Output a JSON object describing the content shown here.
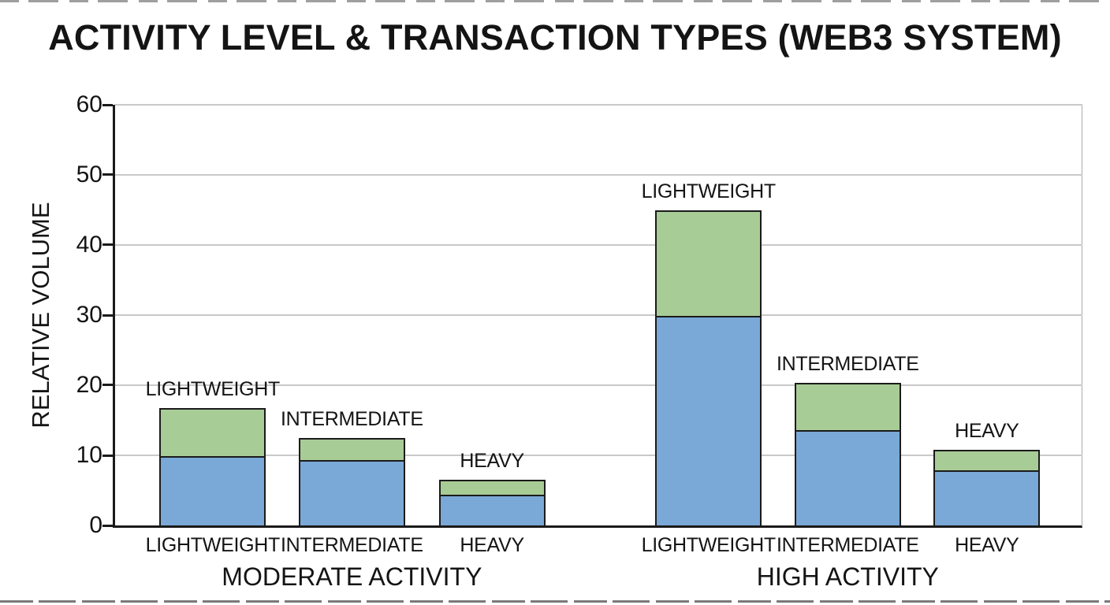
{
  "chart_data": {
    "type": "bar",
    "stacked": true,
    "title": "ACTIVITY LEVEL & TRANSACTION TYPES (WEB3 SYSTEM)",
    "xlabel": "",
    "ylabel": "RELATIVE VOLUME",
    "ylim": [
      0,
      60
    ],
    "yticks": [
      0,
      10,
      20,
      30,
      40,
      50,
      60
    ],
    "grid": true,
    "legend_position": "none",
    "series_names": [
      "blue-lower-segment",
      "green-upper-segment"
    ],
    "groups": [
      {
        "label": "MODERATE ACTIVITY",
        "bars": [
          {
            "category": "LIGHTWEIGHT",
            "annotation": "LIGHTWEIGHT",
            "blue": 10.0,
            "green": 6.7,
            "total": 16.7
          },
          {
            "category": "INTERMEDIATE",
            "annotation": "INTERMEDIATE",
            "blue": 9.5,
            "green": 3.0,
            "total": 12.5
          },
          {
            "category": "HEAVY",
            "annotation": "HEAVY",
            "blue": 4.5,
            "green": 2.0,
            "total": 6.5
          }
        ]
      },
      {
        "label": "HIGH ACTIVITY",
        "bars": [
          {
            "category": "LIGHTWEIGHT",
            "annotation": "LIGHTWEIGHT",
            "blue": 30.0,
            "green": 15.0,
            "total": 45.0
          },
          {
            "category": "INTERMEDIATE",
            "annotation": "INTERMEDIATE",
            "blue": 13.8,
            "green": 6.5,
            "total": 20.3
          },
          {
            "category": "HEAVY",
            "annotation": "HEAVY",
            "blue": 8.0,
            "green": 2.8,
            "total": 10.8
          }
        ]
      }
    ],
    "colors": {
      "blue_segment": "#7aa8d7",
      "green_segment": "#a8cc96",
      "bar_border": "#1b1b1b",
      "axis": "#1a1a1a",
      "gridline": "#c9c9c9",
      "text": "#141414"
    }
  }
}
